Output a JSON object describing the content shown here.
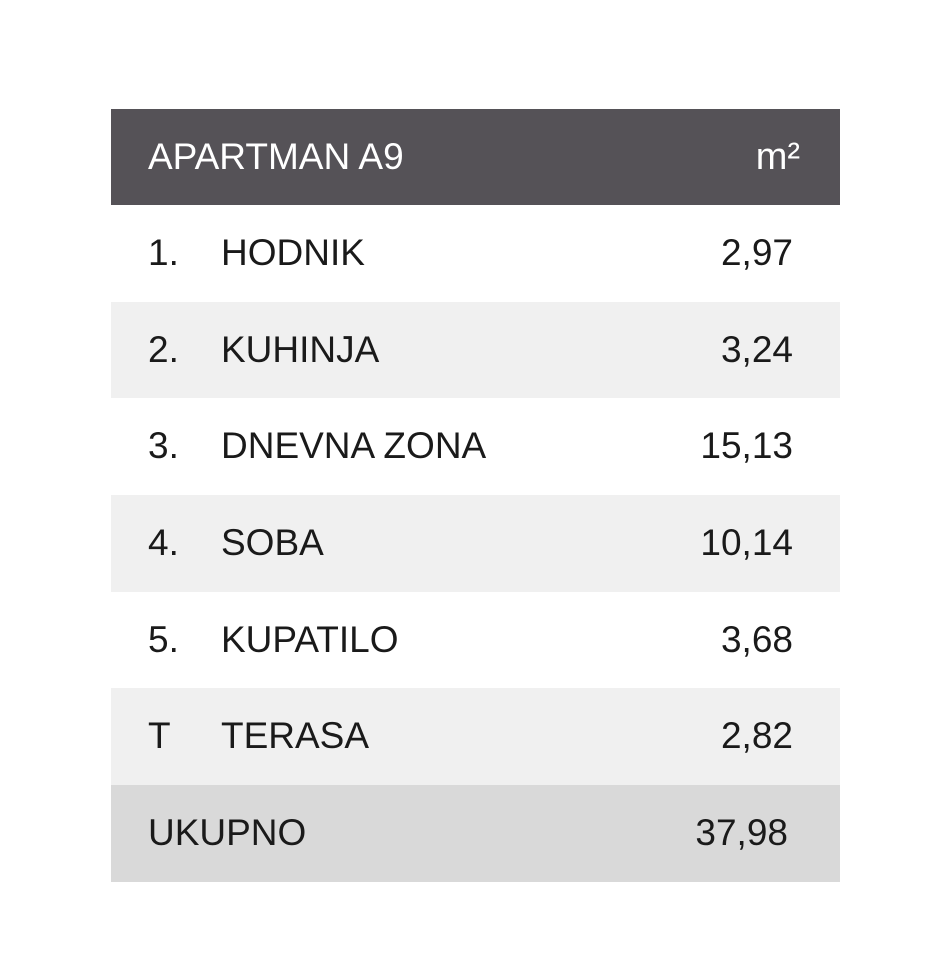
{
  "table": {
    "title": "APARTMAN A9",
    "unit": "m²",
    "rows": [
      [
        "1.",
        "HODNIK",
        "2,97"
      ],
      [
        "2.",
        "KUHINJA",
        "3,24"
      ],
      [
        "3.",
        "DNEVNA ZONA",
        "15,13"
      ],
      [
        "4.",
        "SOBA",
        "10,14"
      ],
      [
        "5.",
        "KUPATILO",
        "3,68"
      ],
      [
        "T",
        "TERASA",
        "2,82"
      ]
    ],
    "total_label": "UKUPNO",
    "total_value": "37,98"
  }
}
